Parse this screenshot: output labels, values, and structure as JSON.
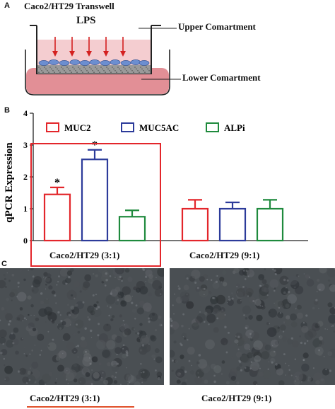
{
  "panel_a": {
    "letter": "A",
    "title": "Caco2/HT29  Transwell",
    "stimulus": "LPS",
    "upper_label": "Upper Comartment",
    "lower_label": "Lower Comartment",
    "colors": {
      "arrow": "#d42020",
      "upper_medium": "#f4cdd0",
      "lower_medium": "#e28f96",
      "cells": "#6c8ed0"
    }
  },
  "panel_b": {
    "letter": "B",
    "colors": {
      "MUC2": "#e3262b",
      "MUC5AC": "#2c3b9a",
      "ALPi": "#1f8a3d",
      "highlight": "#e3262b"
    }
  },
  "chart_data": {
    "type": "bar",
    "ylabel": "qPCR Expression",
    "ylim": [
      0,
      4
    ],
    "yticks": [
      0,
      1,
      2,
      3,
      4
    ],
    "legend": [
      "MUC2",
      "MUC5AC",
      "ALPi"
    ],
    "legend_position": "top",
    "grid": false,
    "groups": [
      "Caco2/HT29 (3:1)",
      "Caco2/HT29 (9:1)"
    ],
    "series": [
      {
        "name": "MUC2",
        "values": [
          1.45,
          1.0
        ],
        "errors": [
          0.22,
          0.28
        ],
        "significant": [
          "*",
          ""
        ]
      },
      {
        "name": "MUC5AC",
        "values": [
          2.55,
          1.0
        ],
        "errors": [
          0.3,
          0.2
        ],
        "significant": [
          "*",
          ""
        ]
      },
      {
        "name": "ALPi",
        "values": [
          0.75,
          1.0
        ],
        "errors": [
          0.2,
          0.28
        ],
        "significant": [
          "",
          ""
        ]
      }
    ]
  },
  "panel_c": {
    "letter": "C",
    "left_label": "Caco2/HT29 (3:1)",
    "right_label": "Caco2/HT29 (9:1)",
    "colors": {
      "image_bg": "#4a4f53",
      "underline": "#e0502a"
    }
  }
}
